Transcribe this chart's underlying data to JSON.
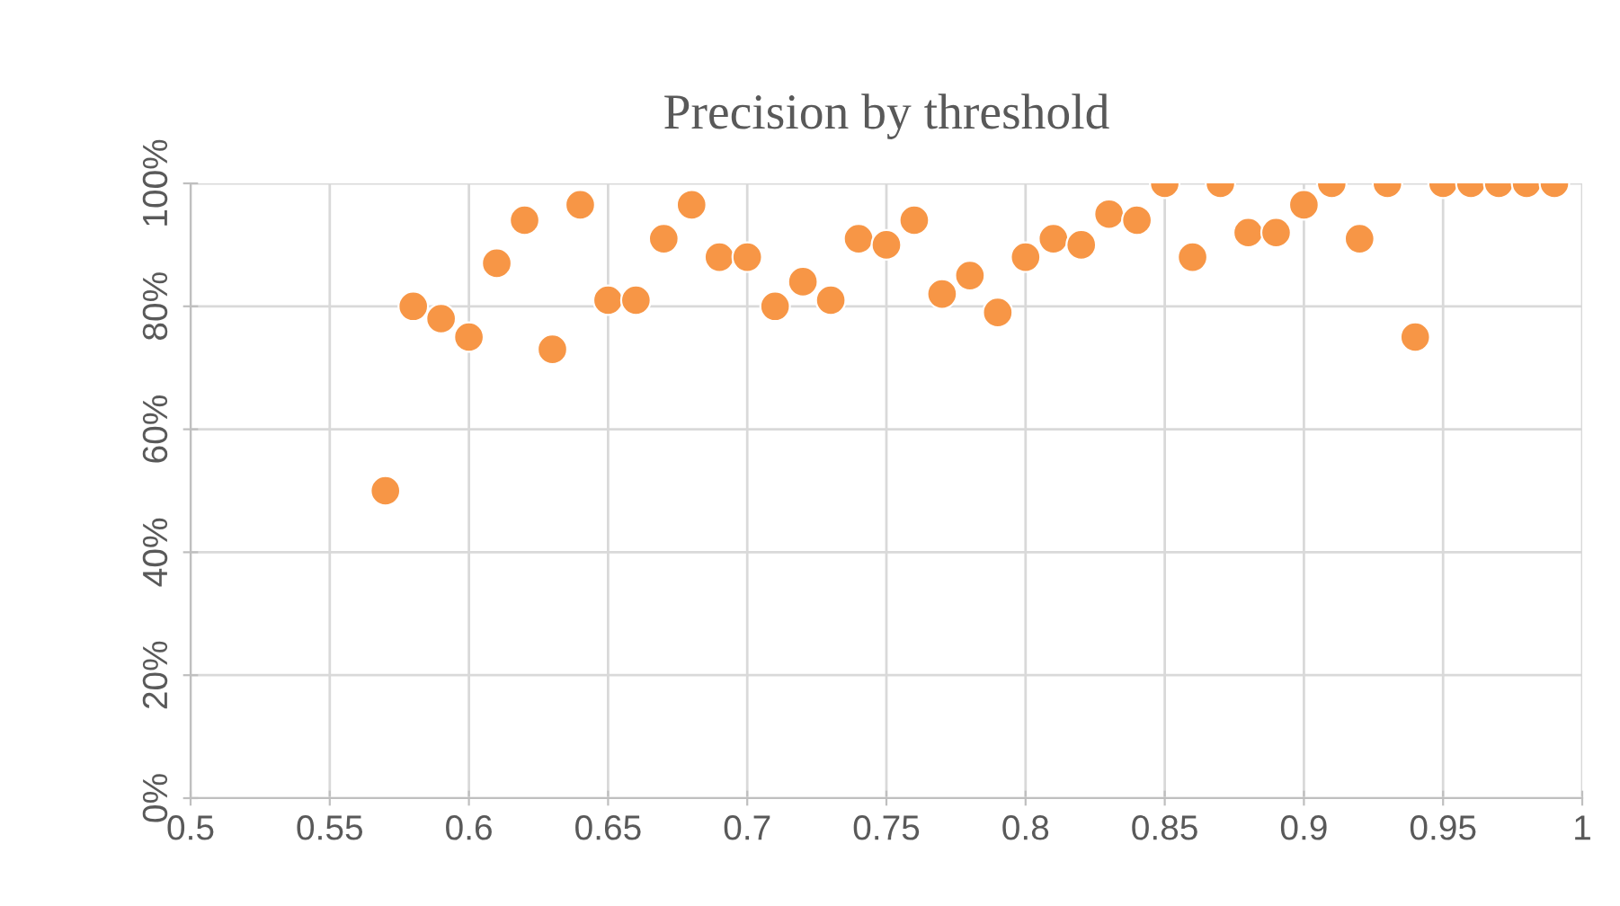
{
  "chart_data": {
    "type": "scatter",
    "title": "Precision by threshold",
    "x": [
      0.57,
      0.58,
      0.59,
      0.6,
      0.61,
      0.62,
      0.63,
      0.64,
      0.65,
      0.66,
      0.67,
      0.68,
      0.69,
      0.7,
      0.71,
      0.72,
      0.73,
      0.74,
      0.75,
      0.76,
      0.77,
      0.78,
      0.79,
      0.8,
      0.81,
      0.82,
      0.83,
      0.84,
      0.85,
      0.86,
      0.87,
      0.88,
      0.89,
      0.9,
      0.91,
      0.92,
      0.93,
      0.94,
      0.95,
      0.96,
      0.97,
      0.98,
      0.99
    ],
    "series": [
      {
        "color": "#f79646",
        "values": [
          50,
          80,
          78,
          75,
          87,
          94,
          73,
          96.5,
          81,
          81,
          91,
          96.5,
          88,
          88,
          80,
          84,
          81,
          91,
          90,
          94,
          82,
          85,
          79,
          88,
          91,
          90,
          95,
          94,
          100,
          88,
          100,
          92,
          92,
          96.5,
          100,
          91,
          100,
          75,
          100,
          100,
          100,
          100,
          100
        ]
      }
    ],
    "xlim": [
      0.5,
      1
    ],
    "xticks": [
      0.5,
      0.55,
      0.6,
      0.65,
      0.7,
      0.75,
      0.8,
      0.85,
      0.9,
      0.95,
      1
    ],
    "ylim": [
      0,
      100
    ],
    "yticks": [
      {
        "value": 0,
        "label": "0%"
      },
      {
        "value": 20,
        "label": "20%"
      },
      {
        "value": 40,
        "label": "40%"
      },
      {
        "value": 60,
        "label": "60%"
      },
      {
        "value": 80,
        "label": "80%"
      },
      {
        "value": 100,
        "label": "100%"
      }
    ],
    "grid": true,
    "marker": "circle"
  }
}
